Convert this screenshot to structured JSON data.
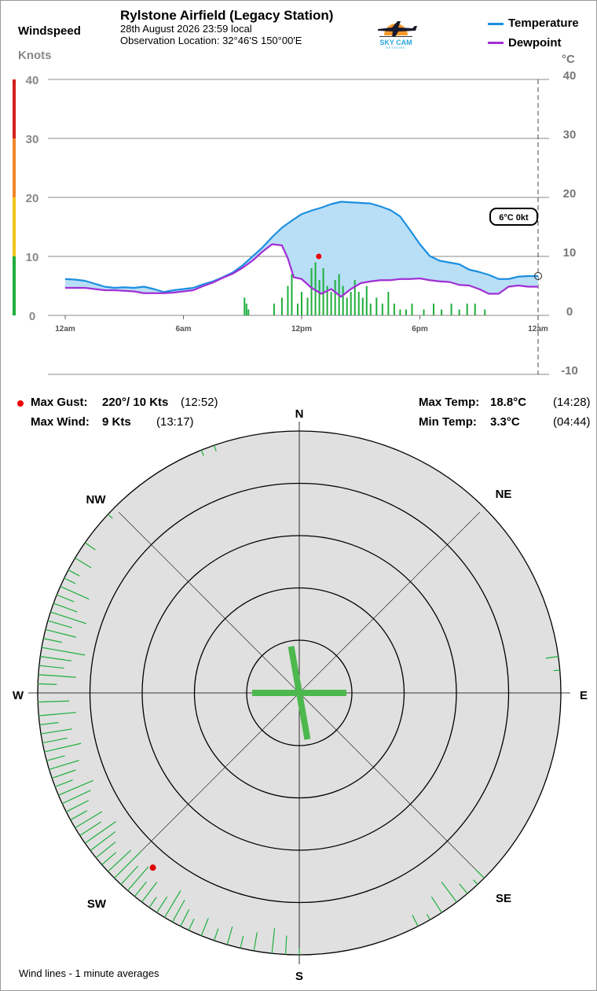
{
  "header": {
    "left_title": "Windspeed",
    "left_unit": "Knots",
    "right_unit": "°C",
    "station": "Rylstone Airfield (Legacy Station)",
    "datetime": "28th August 2026  23:59 local",
    "location": "Observation Location: 32°46'S 150°00'E",
    "logo_text": "SKY CAM",
    "logo_subtext": "NETWORK"
  },
  "chart_data": {
    "type": "line",
    "x_unit": "hours since midnight",
    "x_ticks": [
      {
        "x": 0,
        "label": "12am"
      },
      {
        "x": 6,
        "label": "6am"
      },
      {
        "x": 12,
        "label": "12pm"
      },
      {
        "x": 18,
        "label": "6pm"
      },
      {
        "x": 24,
        "label": "12am"
      }
    ],
    "xlim": [
      0,
      24
    ],
    "y_left": {
      "label": "Knots",
      "lim": [
        0,
        40
      ],
      "ticks": [
        0,
        10,
        20,
        30,
        40
      ]
    },
    "y_right": {
      "label": "°C",
      "lim": [
        -10,
        40
      ],
      "ticks": [
        -10,
        0,
        10,
        20,
        30,
        40
      ]
    },
    "wind_scale_colors": [
      {
        "from": 0,
        "to": 10,
        "color": "#1fae3c"
      },
      {
        "from": 10,
        "to": 20,
        "color": "#f2c41c"
      },
      {
        "from": 20,
        "to": 30,
        "color": "#f0862b"
      },
      {
        "from": 30,
        "to": 40,
        "color": "#d41e1e"
      }
    ],
    "series": [
      {
        "name": "Temperature",
        "axis": "right",
        "color": "#1c8fe0",
        "x": [
          0,
          0.5,
          1,
          1.5,
          2,
          2.5,
          3,
          3.5,
          4,
          4.5,
          5,
          5.5,
          6,
          6.5,
          7,
          7.5,
          8,
          8.5,
          9,
          9.5,
          10,
          10.5,
          11,
          11.5,
          12,
          12.5,
          13,
          13.5,
          14,
          14.5,
          15,
          15.5,
          16,
          16.5,
          17,
          17.5,
          18,
          18.5,
          19,
          19.5,
          20,
          20.5,
          21,
          21.5,
          22,
          22.5,
          23,
          23.5,
          24
        ],
        "values": [
          5.5,
          5.4,
          5.2,
          4.7,
          4.2,
          4.0,
          4.1,
          4.0,
          4.2,
          3.8,
          3.3,
          3.6,
          3.8,
          4.0,
          4.6,
          5.1,
          5.8,
          6.6,
          7.8,
          9.3,
          10.8,
          12.6,
          14.2,
          15.4,
          16.5,
          17.1,
          17.6,
          18.2,
          18.6,
          18.5,
          18.4,
          18.3,
          17.8,
          17.2,
          16.1,
          13.8,
          11.4,
          9.4,
          8.6,
          8.3,
          8.0,
          7.1,
          6.7,
          6.2,
          5.5,
          5.5,
          5.9,
          6.0,
          6.0
        ]
      },
      {
        "name": "Dewpoint",
        "axis": "right",
        "color": "#a12fd4",
        "x": [
          0,
          0.5,
          1,
          1.5,
          2,
          2.5,
          3,
          3.5,
          4,
          4.5,
          5,
          5.5,
          6,
          6.5,
          7,
          7.5,
          8,
          8.5,
          9,
          9.5,
          10,
          10.5,
          11,
          11.3,
          11.6,
          12,
          12.5,
          13,
          13.5,
          14,
          14.5,
          15,
          15.5,
          16,
          16.5,
          17,
          17.5,
          18,
          18.5,
          19,
          19.5,
          20,
          20.5,
          21,
          21.5,
          22,
          22.5,
          23,
          23.5,
          24
        ],
        "values": [
          4.0,
          4.0,
          4.0,
          3.8,
          3.6,
          3.6,
          3.5,
          3.4,
          3.1,
          3.1,
          3.1,
          3.2,
          3.4,
          3.6,
          4.3,
          4.9,
          5.7,
          6.4,
          7.4,
          8.6,
          10.1,
          11.4,
          11.2,
          9.0,
          5.8,
          5.5,
          4.0,
          3.0,
          3.8,
          2.5,
          3.8,
          4.8,
          5.1,
          5.3,
          5.3,
          5.5,
          5.5,
          5.6,
          5.3,
          5.1,
          5.0,
          4.5,
          4.4,
          3.8,
          3.0,
          3.0,
          4.2,
          4.4,
          4.2,
          4.2
        ]
      }
    ],
    "wind_bars": {
      "name": "Windspeed",
      "axis": "left",
      "x": [
        9.1,
        9.2,
        9.3,
        10.6,
        11.0,
        11.3,
        11.5,
        11.8,
        12.0,
        12.3,
        12.5,
        12.7,
        12.9,
        13.1,
        13.3,
        13.5,
        13.7,
        13.9,
        14.1,
        14.3,
        14.5,
        14.7,
        14.9,
        15.1,
        15.3,
        15.5,
        15.8,
        16.1,
        16.4,
        16.7,
        17.0,
        17.3,
        17.6,
        18.2,
        18.7,
        19.1,
        19.6,
        20.0,
        20.4,
        20.8,
        21.3
      ],
      "values": [
        3,
        2,
        1,
        2,
        3,
        5,
        7,
        2,
        4,
        3,
        8,
        9,
        6,
        8,
        5,
        4,
        6,
        7,
        5,
        3,
        4,
        6,
        4,
        3,
        5,
        2,
        3,
        2,
        4,
        2,
        1,
        1,
        2,
        1,
        2,
        1,
        2,
        1,
        2,
        2,
        1
      ]
    },
    "max_gust_marker": {
      "x": 12.87,
      "value": 10,
      "axis": "left"
    },
    "current_marker": {
      "x": 24,
      "value": 6,
      "axis": "right"
    },
    "current_badge": "6°C  0kt"
  },
  "stats": {
    "max_gust": {
      "label": "Max Gust:",
      "value": "220°/  10 Kts",
      "time": "(12:52)"
    },
    "max_wind": {
      "label": "Max Wind:",
      "value": "9 Kts",
      "time": "(13:17)"
    },
    "max_temp": {
      "label": "Max Temp:",
      "value": "18.8°C",
      "time": "(14:28)"
    },
    "min_temp": {
      "label": "Min Temp:",
      "value": "3.3°C",
      "time": "(04:44)"
    }
  },
  "rose": {
    "directions": [
      {
        "label": "N",
        "deg": 0
      },
      {
        "label": "NE",
        "deg": 45
      },
      {
        "label": "E",
        "deg": 90
      },
      {
        "label": "SE",
        "deg": 135
      },
      {
        "label": "S",
        "deg": 180
      },
      {
        "label": "SW",
        "deg": 225
      },
      {
        "label": "W",
        "deg": 270
      },
      {
        "label": "NW",
        "deg": 315
      }
    ],
    "colors": {
      "background": "#e0e0e0",
      "ring": "#000000",
      "tick": "#1fae3c",
      "cross": "#4db84d",
      "gust": "#e00000"
    },
    "wind_lines": {
      "directions": [
        338,
        341,
        313,
        305,
        301,
        298,
        296,
        294,
        292,
        290,
        288,
        286,
        284,
        282,
        280,
        278,
        276,
        274,
        272,
        268,
        265,
        263,
        261,
        259,
        257,
        255,
        253,
        251,
        249,
        247,
        245,
        243,
        241,
        239,
        237,
        235,
        233,
        231,
        229,
        227,
        225,
        223,
        221,
        219,
        217,
        215,
        213,
        211,
        209,
        207,
        205,
        202,
        199,
        196,
        193,
        190,
        186,
        183,
        180,
        153,
        150,
        147,
        143,
        140,
        137,
        135,
        85,
        82
      ],
      "values": [
        1,
        1,
        1,
        2,
        3,
        2,
        2,
        5,
        3,
        4,
        6,
        4,
        5,
        3,
        7,
        5,
        4,
        6,
        3,
        5,
        6,
        3,
        5,
        4,
        6,
        3,
        5,
        4,
        3,
        6,
        5,
        4,
        3,
        5,
        4,
        6,
        5,
        4,
        3,
        5,
        6,
        4,
        5,
        3,
        4,
        2,
        3,
        5,
        4,
        3,
        2,
        3,
        2,
        3,
        2,
        3,
        4,
        3,
        1,
        2,
        1,
        3,
        4,
        2,
        1,
        2,
        1,
        2
      ]
    },
    "average_cross": {
      "main_dir": 170,
      "main_length": 1.0,
      "cross_dir": 90,
      "cross_length": 1.0
    },
    "max_gust": {
      "dir": 220,
      "value": 10
    }
  },
  "footer": {
    "note": "Wind lines - 1 minute averages"
  }
}
